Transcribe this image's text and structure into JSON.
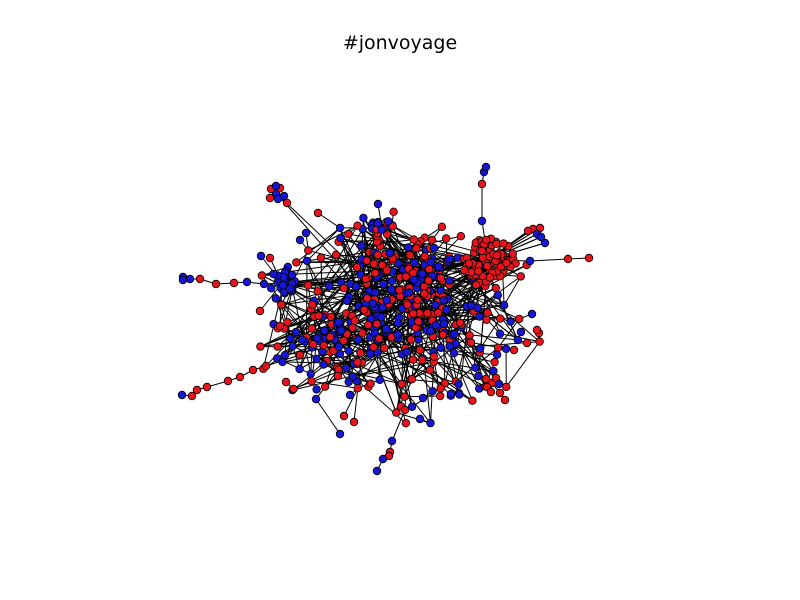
{
  "figure": {
    "title": "#jonvoyage"
  },
  "graph": {
    "node_colors": {
      "red": "#e8141b",
      "blue": "#1616d4"
    },
    "edge_color": "#000000",
    "node_outline": "#000000"
  }
}
